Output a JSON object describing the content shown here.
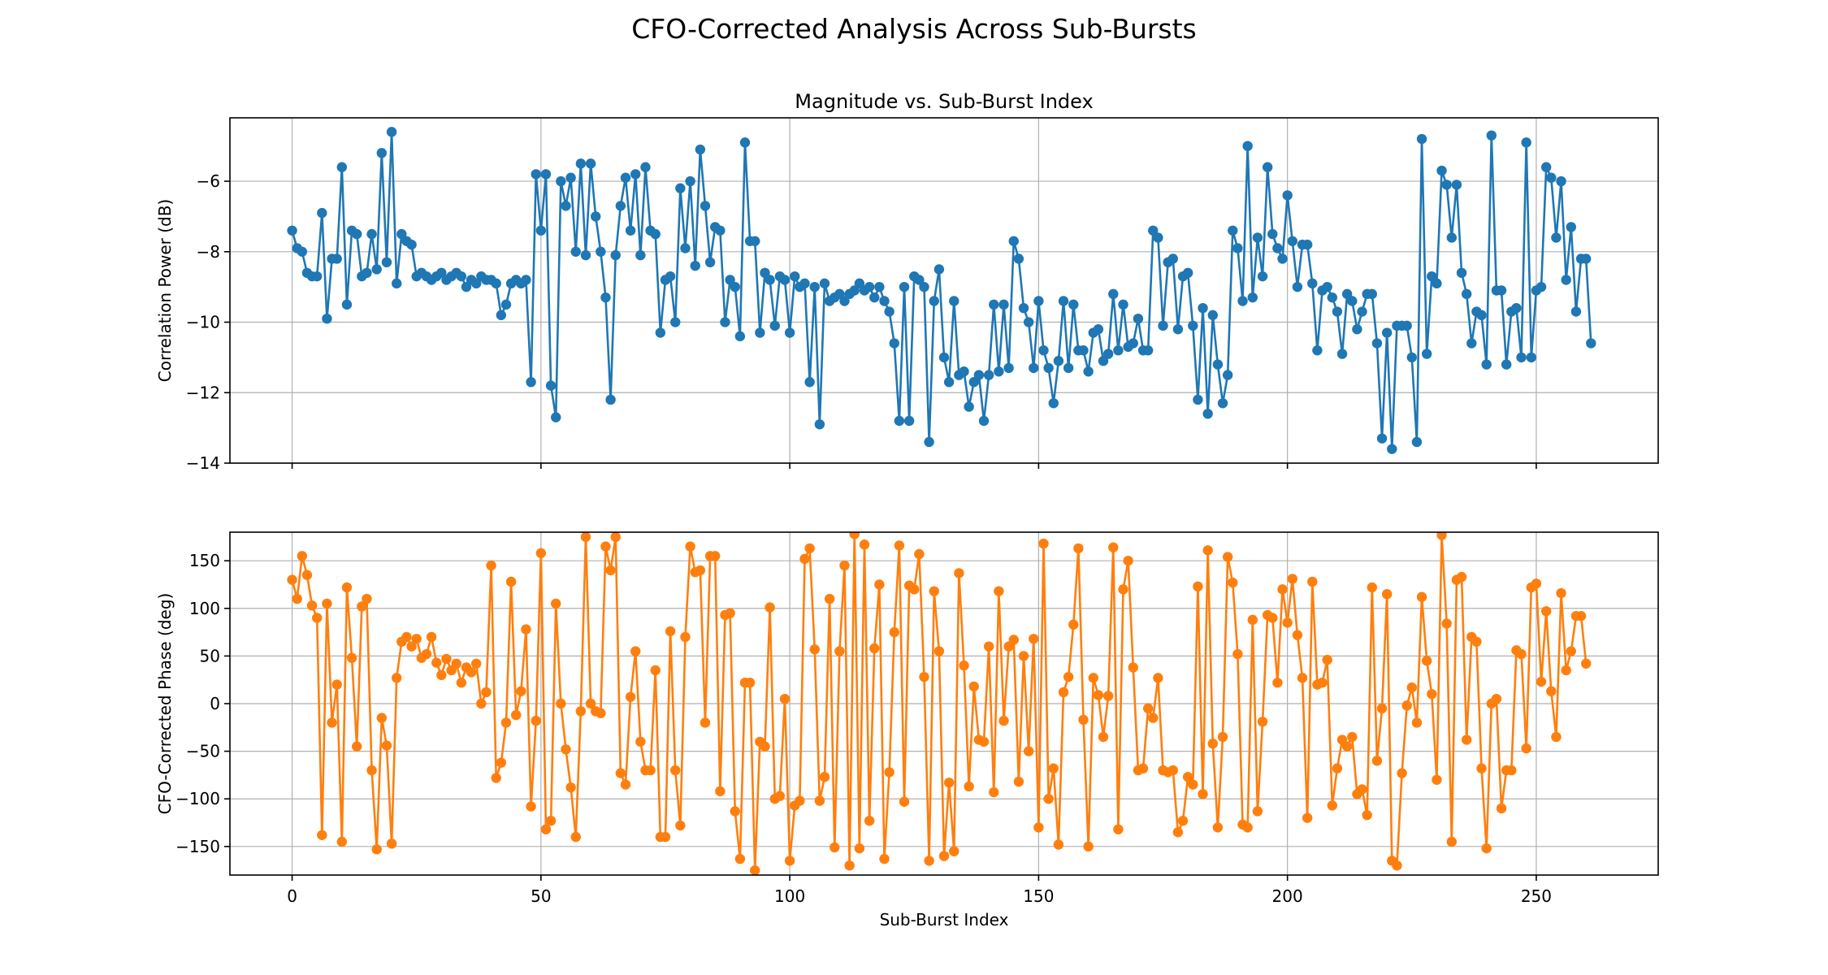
{
  "figure": {
    "suptitle": "CFO-Corrected Analysis Across Sub-Bursts"
  },
  "chart_data": [
    {
      "type": "line",
      "title": "Magnitude vs. Sub-Burst Index",
      "xlabel": "",
      "ylabel": "Correlation Power (dB)",
      "xlim": [
        -12.5,
        274.5
      ],
      "ylim": [
        -14,
        -4.2
      ],
      "xticks": [
        0,
        50,
        100,
        150,
        200,
        250
      ],
      "yticks": [
        -14,
        -12,
        -10,
        -8,
        -6
      ],
      "ytick_labels": [
        "−14",
        "−12",
        "−10",
        "−8",
        "−6"
      ],
      "show_xtick_labels": false,
      "grid": true,
      "color": "#1f77b4",
      "x_start": 0,
      "values": [
        -7.4,
        -7.9,
        -8.0,
        -8.6,
        -8.7,
        -8.7,
        -6.9,
        -9.9,
        -8.2,
        -8.2,
        -5.6,
        -9.5,
        -7.4,
        -7.5,
        -8.7,
        -8.6,
        -7.5,
        -8.5,
        -5.2,
        -8.3,
        -4.6,
        -8.9,
        -7.5,
        -7.7,
        -7.8,
        -8.7,
        -8.6,
        -8.7,
        -8.8,
        -8.7,
        -8.6,
        -8.8,
        -8.7,
        -8.6,
        -8.7,
        -9.0,
        -8.8,
        -8.9,
        -8.7,
        -8.8,
        -8.8,
        -8.9,
        -9.8,
        -9.5,
        -8.9,
        -8.8,
        -8.9,
        -8.8,
        -11.7,
        -5.8,
        -7.4,
        -5.8,
        -11.8,
        -12.7,
        -6.0,
        -6.7,
        -5.9,
        -8.0,
        -5.5,
        -8.1,
        -5.5,
        -7.0,
        -8.0,
        -9.3,
        -12.2,
        -8.1,
        -6.7,
        -5.9,
        -7.4,
        -5.8,
        -8.1,
        -5.6,
        -7.4,
        -7.5,
        -10.3,
        -8.8,
        -8.7,
        -10.0,
        -6.2,
        -7.9,
        -6.0,
        -8.4,
        -5.1,
        -6.7,
        -8.3,
        -7.3,
        -7.4,
        -10.0,
        -8.8,
        -9.0,
        -10.4,
        -4.9,
        -7.7,
        -7.7,
        -10.3,
        -8.6,
        -8.8,
        -10.1,
        -8.7,
        -8.8,
        -10.3,
        -8.7,
        -9.0,
        -8.9,
        -11.7,
        -9.0,
        -12.9,
        -8.9,
        -9.4,
        -9.3,
        -9.2,
        -9.4,
        -9.2,
        -9.1,
        -8.9,
        -9.1,
        -9.0,
        -9.3,
        -9.0,
        -9.4,
        -9.7,
        -10.6,
        -12.8,
        -9.0,
        -12.8,
        -8.7,
        -8.8,
        -9.0,
        -13.4,
        -9.4,
        -8.5,
        -11.0,
        -11.7,
        -9.4,
        -11.5,
        -11.4,
        -12.4,
        -11.7,
        -11.5,
        -12.8,
        -11.5,
        -9.5,
        -11.4,
        -9.5,
        -11.3,
        -7.7,
        -8.2,
        -9.6,
        -10.0,
        -11.3,
        -9.4,
        -10.8,
        -11.3,
        -12.3,
        -11.1,
        -9.4,
        -11.3,
        -9.5,
        -10.8,
        -10.8,
        -11.4,
        -10.3,
        -10.2,
        -11.1,
        -10.9,
        -9.2,
        -10.8,
        -9.5,
        -10.7,
        -10.6,
        -9.9,
        -10.8,
        -10.8,
        -7.4,
        -7.6,
        -10.1,
        -8.3,
        -8.2,
        -10.2,
        -8.7,
        -8.6,
        -10.1,
        -12.2,
        -9.6,
        -12.6,
        -9.8,
        -11.2,
        -12.3,
        -11.5,
        -7.4,
        -7.9,
        -9.4,
        -5.0,
        -9.3,
        -7.6,
        -8.7,
        -5.6,
        -7.5,
        -7.9,
        -8.2,
        -6.4,
        -7.7,
        -9.0,
        -7.8,
        -7.8,
        -8.9,
        -10.8,
        -9.1,
        -9.0,
        -9.3,
        -9.7,
        -10.9,
        -9.2,
        -9.4,
        -10.2,
        -9.7,
        -9.2,
        -9.2,
        -10.6,
        -13.3,
        -10.3,
        -13.6,
        -10.1,
        -10.1,
        -10.1,
        -11.0,
        -13.4,
        -4.8,
        -10.9,
        -8.7,
        -8.9,
        -5.7,
        -6.1,
        -7.6,
        -6.1,
        -8.6,
        -9.2,
        -10.6,
        -9.7,
        -9.8,
        -11.2,
        -4.7,
        -9.1,
        -9.1,
        -11.2,
        -9.7,
        -9.6,
        -11.0,
        -4.9,
        -11.0,
        -9.1,
        -9.0,
        -5.6,
        -5.9,
        -7.6,
        -6.0,
        -8.8,
        -7.3,
        -9.7,
        -8.2,
        -8.2,
        -10.6
      ]
    },
    {
      "type": "line",
      "title": "",
      "xlabel": "Sub-Burst Index",
      "ylabel": "CFO-Corrected Phase (deg)",
      "xlim": [
        -12.5,
        274.5
      ],
      "ylim": [
        -180,
        180
      ],
      "xticks": [
        0,
        50,
        100,
        150,
        200,
        250
      ],
      "yticks": [
        -150,
        -100,
        -50,
        0,
        50,
        100,
        150
      ],
      "ytick_labels": [
        "−150",
        "−100",
        "−50",
        "0",
        "50",
        "100",
        "150"
      ],
      "show_xtick_labels": true,
      "grid": true,
      "color": "#ff7f0e",
      "x_start": 0,
      "values": [
        130,
        110,
        155,
        135,
        103,
        90,
        -138,
        105,
        -20,
        20,
        -145,
        122,
        48,
        -45,
        102,
        110,
        -70,
        -153,
        -15,
        -44,
        -147,
        27,
        65,
        70,
        60,
        68,
        48,
        52,
        70,
        43,
        30,
        47,
        35,
        42,
        22,
        38,
        33,
        42,
        0,
        12,
        145,
        -78,
        -62,
        -20,
        128,
        -12,
        13,
        78,
        -108,
        -18,
        158,
        -132,
        -123,
        105,
        0,
        -48,
        -88,
        -140,
        -8,
        175,
        0,
        -8,
        -10,
        165,
        140,
        175,
        -73,
        -85,
        7,
        55,
        -40,
        -70,
        -70,
        35,
        -140,
        -140,
        76,
        -70,
        -128,
        70,
        165,
        138,
        140,
        -20,
        155,
        155,
        -92,
        93,
        95,
        -113,
        -163,
        22,
        22,
        -175,
        -40,
        -45,
        101,
        -100,
        -97,
        5,
        -165,
        -107,
        -102,
        152,
        163,
        57,
        -102,
        -77,
        110,
        -151,
        55,
        145,
        -170,
        178,
        -152,
        167,
        -123,
        58,
        125,
        -163,
        -72,
        75,
        166,
        -103,
        124,
        120,
        157,
        28,
        -165,
        118,
        55,
        -160,
        -83,
        -155,
        137,
        40,
        -87,
        18,
        -38,
        -40,
        60,
        -93,
        118,
        -18,
        60,
        67,
        -82,
        50,
        -50,
        68,
        -130,
        168,
        -100,
        -68,
        -148,
        12,
        28,
        83,
        163,
        -17,
        -150,
        27,
        9,
        -35,
        8,
        164,
        -132,
        120,
        150,
        38,
        -70,
        -68,
        -5,
        -15,
        27,
        -70,
        -72,
        -70,
        -135,
        -123,
        -77,
        -85,
        123,
        -95,
        161,
        -42,
        -130,
        -35,
        154,
        127,
        52,
        -127,
        -130,
        88,
        -113,
        -19,
        93,
        90,
        22,
        120,
        85,
        131,
        72,
        27,
        -120,
        128,
        20,
        22,
        46,
        -107,
        -68,
        -38,
        -45,
        -35,
        -95,
        -90,
        -117,
        122,
        -60,
        -5,
        115,
        -165,
        -170,
        -73,
        -2,
        17,
        -20,
        112,
        45,
        10,
        -80,
        177,
        84,
        -145,
        130,
        133,
        -38,
        70,
        65,
        -68,
        -152,
        0,
        5,
        -110,
        -70,
        -70,
        56,
        52,
        -47,
        122,
        126,
        23,
        97,
        13,
        -35,
        116,
        35,
        55,
        92,
        92,
        42
      ]
    }
  ]
}
